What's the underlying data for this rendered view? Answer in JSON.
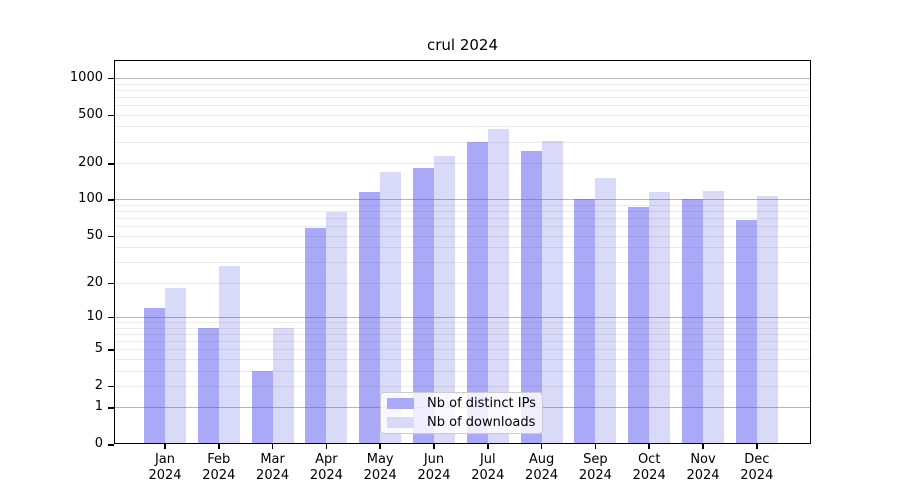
{
  "title": "crul 2024",
  "colors": {
    "ips_bar": "#a9a9f8",
    "downloads_bar": "#d9d9f8",
    "grid_major": "#b3b3b3",
    "grid_minor": "#e9e9e9",
    "axis": "#000000"
  },
  "legend": {
    "items": [
      {
        "label": "Nb of distinct IPs",
        "series": "ips"
      },
      {
        "label": "Nb of downloads",
        "series": "downloads"
      }
    ]
  },
  "chart_data": {
    "type": "bar",
    "title": "crul 2024",
    "categories": [
      "Jan 2024",
      "Feb 2024",
      "Mar 2024",
      "Apr 2024",
      "May 2024",
      "Jun 2024",
      "Jul 2024",
      "Aug 2024",
      "Sep 2024",
      "Oct 2024",
      "Nov 2024",
      "Dec 2024"
    ],
    "series": [
      {
        "name": "Nb of distinct IPs",
        "values": [
          12,
          8,
          3,
          58,
          115,
          182,
          300,
          250,
          101,
          87,
          100,
          68
        ]
      },
      {
        "name": "Nb of downloads",
        "values": [
          18,
          28,
          8,
          78,
          170,
          228,
          380,
          305,
          150,
          116,
          117,
          106
        ]
      }
    ],
    "xlabel": "",
    "ylabel": "",
    "yscale": "log1p",
    "y_ticks": [
      0,
      1,
      2,
      5,
      10,
      20,
      50,
      100,
      200,
      500,
      1000
    ],
    "ylim": [
      0,
      1400
    ],
    "grid": true,
    "legend_position": "inside-bottom-center"
  }
}
